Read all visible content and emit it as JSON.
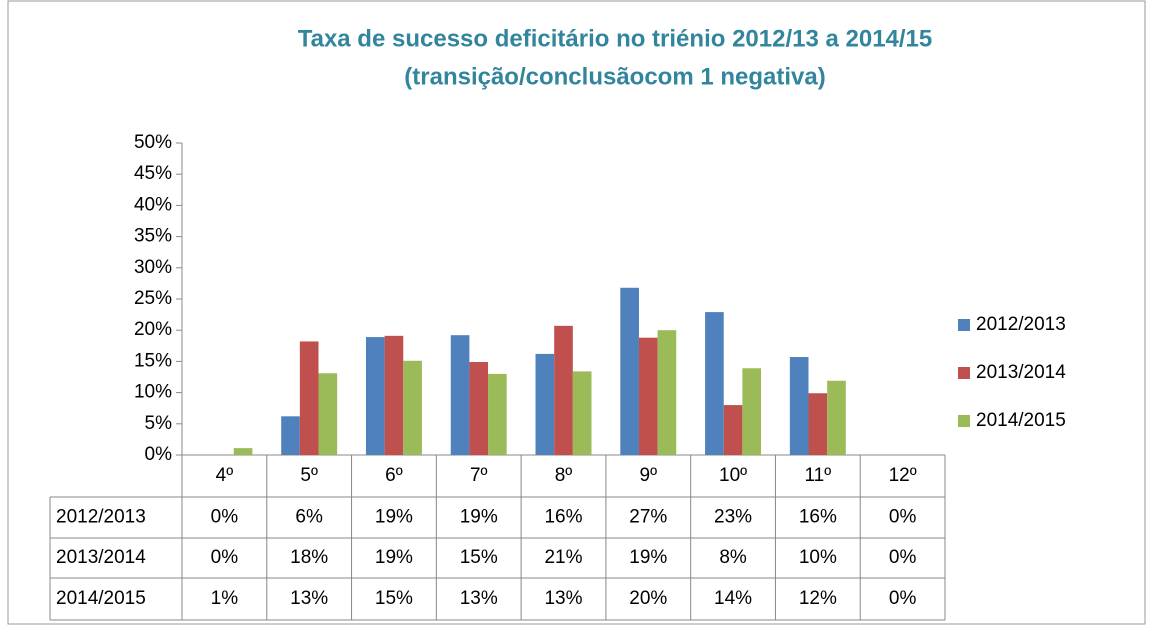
{
  "chart_data": {
    "type": "bar",
    "title": [
      "Taxa de sucesso deficitário no triénio 2012/13 a 2014/15",
      "(transição/conclusãocom 1 negativa)"
    ],
    "categories": [
      "4º",
      "5º",
      "6º",
      "7º",
      "8º",
      "9º",
      "10º",
      "11º",
      "12º"
    ],
    "series": [
      {
        "name": "2012/2013",
        "color": "#4f81bd",
        "values": [
          0,
          6.2,
          18.9,
          19.2,
          16.2,
          26.8,
          22.9,
          15.7,
          0
        ],
        "value_labels": [
          "0%",
          "6%",
          "19%",
          "19%",
          "16%",
          "27%",
          "23%",
          "16%",
          "0%"
        ]
      },
      {
        "name": "2013/2014",
        "color": "#c0504d",
        "values": [
          0,
          18.2,
          19.1,
          14.9,
          20.7,
          18.8,
          8.0,
          9.9,
          0
        ],
        "value_labels": [
          "0%",
          "18%",
          "19%",
          "15%",
          "21%",
          "19%",
          "8%",
          "10%",
          "0%"
        ]
      },
      {
        "name": "2014/2015",
        "color": "#9bbb59",
        "values": [
          1.1,
          13.1,
          15.1,
          13.0,
          13.4,
          20.0,
          13.9,
          11.9,
          0
        ],
        "value_labels": [
          "1%",
          "13%",
          "15%",
          "13%",
          "13%",
          "20%",
          "14%",
          "12%",
          "0%"
        ]
      }
    ],
    "ylim": [
      0,
      50
    ],
    "yticks": [
      {
        "value": 0,
        "label": "0%"
      },
      {
        "value": 5,
        "label": "5%"
      },
      {
        "value": 10,
        "label": "10%"
      },
      {
        "value": 15,
        "label": "15%"
      },
      {
        "value": 20,
        "label": "20%"
      },
      {
        "value": 25,
        "label": "25%"
      },
      {
        "value": 30,
        "label": "30%"
      },
      {
        "value": 35,
        "label": "35%"
      },
      {
        "value": 40,
        "label": "40%"
      },
      {
        "value": 45,
        "label": "45%"
      },
      {
        "value": 50,
        "label": "50%"
      }
    ],
    "legend": "right"
  }
}
